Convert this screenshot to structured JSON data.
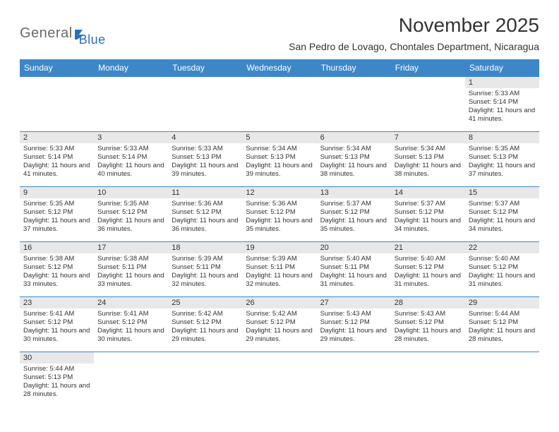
{
  "brand": {
    "part1": "General",
    "part2": "Blue"
  },
  "title": "November 2025",
  "location": "San Pedro de Lovago, Chontales Department, Nicaragua",
  "colors": {
    "header_bg": "#3d87c9",
    "header_text": "#ffffff",
    "daynum_bg": "#e8e8e8",
    "border": "#3d87c9",
    "logo_gray": "#6b6b6b",
    "logo_blue": "#2a72b5",
    "text": "#333333",
    "background": "#ffffff"
  },
  "day_headers": [
    "Sunday",
    "Monday",
    "Tuesday",
    "Wednesday",
    "Thursday",
    "Friday",
    "Saturday"
  ],
  "weeks": [
    [
      null,
      null,
      null,
      null,
      null,
      null,
      {
        "n": "1",
        "sr": "5:33 AM",
        "ss": "5:14 PM",
        "dl": "11 hours and 41 minutes."
      }
    ],
    [
      {
        "n": "2",
        "sr": "5:33 AM",
        "ss": "5:14 PM",
        "dl": "11 hours and 41 minutes."
      },
      {
        "n": "3",
        "sr": "5:33 AM",
        "ss": "5:14 PM",
        "dl": "11 hours and 40 minutes."
      },
      {
        "n": "4",
        "sr": "5:33 AM",
        "ss": "5:13 PM",
        "dl": "11 hours and 39 minutes."
      },
      {
        "n": "5",
        "sr": "5:34 AM",
        "ss": "5:13 PM",
        "dl": "11 hours and 39 minutes."
      },
      {
        "n": "6",
        "sr": "5:34 AM",
        "ss": "5:13 PM",
        "dl": "11 hours and 38 minutes."
      },
      {
        "n": "7",
        "sr": "5:34 AM",
        "ss": "5:13 PM",
        "dl": "11 hours and 38 minutes."
      },
      {
        "n": "8",
        "sr": "5:35 AM",
        "ss": "5:13 PM",
        "dl": "11 hours and 37 minutes."
      }
    ],
    [
      {
        "n": "9",
        "sr": "5:35 AM",
        "ss": "5:12 PM",
        "dl": "11 hours and 37 minutes."
      },
      {
        "n": "10",
        "sr": "5:35 AM",
        "ss": "5:12 PM",
        "dl": "11 hours and 36 minutes."
      },
      {
        "n": "11",
        "sr": "5:36 AM",
        "ss": "5:12 PM",
        "dl": "11 hours and 36 minutes."
      },
      {
        "n": "12",
        "sr": "5:36 AM",
        "ss": "5:12 PM",
        "dl": "11 hours and 35 minutes."
      },
      {
        "n": "13",
        "sr": "5:37 AM",
        "ss": "5:12 PM",
        "dl": "11 hours and 35 minutes."
      },
      {
        "n": "14",
        "sr": "5:37 AM",
        "ss": "5:12 PM",
        "dl": "11 hours and 34 minutes."
      },
      {
        "n": "15",
        "sr": "5:37 AM",
        "ss": "5:12 PM",
        "dl": "11 hours and 34 minutes."
      }
    ],
    [
      {
        "n": "16",
        "sr": "5:38 AM",
        "ss": "5:12 PM",
        "dl": "11 hours and 33 minutes."
      },
      {
        "n": "17",
        "sr": "5:38 AM",
        "ss": "5:11 PM",
        "dl": "11 hours and 33 minutes."
      },
      {
        "n": "18",
        "sr": "5:39 AM",
        "ss": "5:11 PM",
        "dl": "11 hours and 32 minutes."
      },
      {
        "n": "19",
        "sr": "5:39 AM",
        "ss": "5:11 PM",
        "dl": "11 hours and 32 minutes."
      },
      {
        "n": "20",
        "sr": "5:40 AM",
        "ss": "5:11 PM",
        "dl": "11 hours and 31 minutes."
      },
      {
        "n": "21",
        "sr": "5:40 AM",
        "ss": "5:12 PM",
        "dl": "11 hours and 31 minutes."
      },
      {
        "n": "22",
        "sr": "5:40 AM",
        "ss": "5:12 PM",
        "dl": "11 hours and 31 minutes."
      }
    ],
    [
      {
        "n": "23",
        "sr": "5:41 AM",
        "ss": "5:12 PM",
        "dl": "11 hours and 30 minutes."
      },
      {
        "n": "24",
        "sr": "5:41 AM",
        "ss": "5:12 PM",
        "dl": "11 hours and 30 minutes."
      },
      {
        "n": "25",
        "sr": "5:42 AM",
        "ss": "5:12 PM",
        "dl": "11 hours and 29 minutes."
      },
      {
        "n": "26",
        "sr": "5:42 AM",
        "ss": "5:12 PM",
        "dl": "11 hours and 29 minutes."
      },
      {
        "n": "27",
        "sr": "5:43 AM",
        "ss": "5:12 PM",
        "dl": "11 hours and 29 minutes."
      },
      {
        "n": "28",
        "sr": "5:43 AM",
        "ss": "5:12 PM",
        "dl": "11 hours and 28 minutes."
      },
      {
        "n": "29",
        "sr": "5:44 AM",
        "ss": "5:12 PM",
        "dl": "11 hours and 28 minutes."
      }
    ],
    [
      {
        "n": "30",
        "sr": "5:44 AM",
        "ss": "5:13 PM",
        "dl": "11 hours and 28 minutes."
      },
      null,
      null,
      null,
      null,
      null,
      null
    ]
  ],
  "labels": {
    "sunrise": "Sunrise:",
    "sunset": "Sunset:",
    "daylight": "Daylight:"
  }
}
